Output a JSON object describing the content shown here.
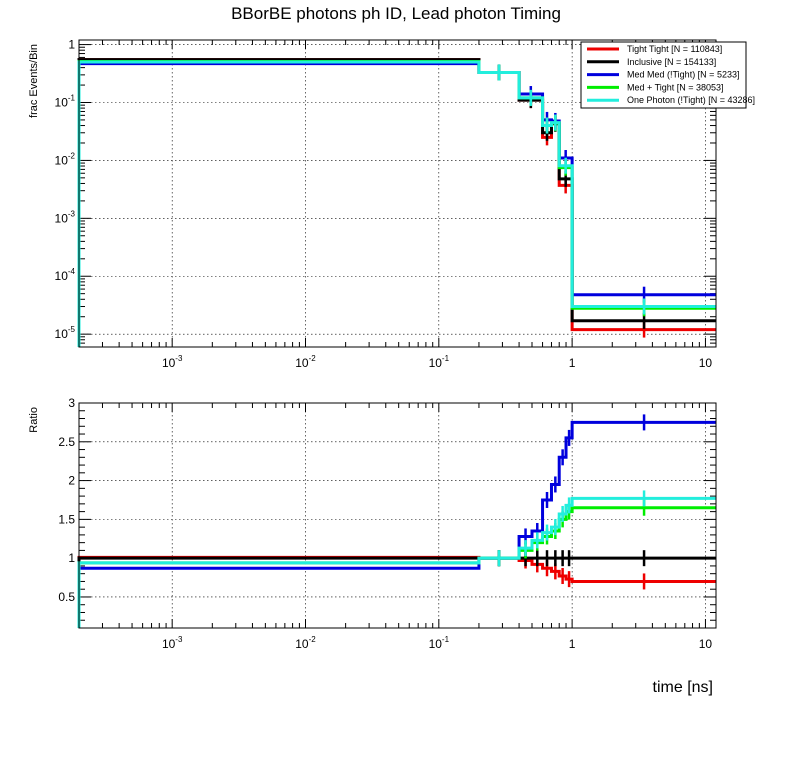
{
  "title": "BBorBE photons ph ID, Lead photon Timing",
  "xlabel": "time [ns]",
  "colors": {
    "Tight Tight": "#ee0000",
    "Inclusive": "#000000",
    "Med Med (!Tight)": "#0000dd",
    "Med + Tight": "#00ee00",
    "One Photon (!Tight)": "#22eedd"
  },
  "chart_data": [
    {
      "type": "line",
      "step": true,
      "ylabel": "frac Events/Bin",
      "xscale": "log",
      "yscale": "log",
      "xlim": [
        0.0002,
        12
      ],
      "ylim": [
        6e-06,
        1.2
      ],
      "grid": true,
      "legend_position": "top-right",
      "xticks": [
        {
          "value": 0.001,
          "base": "10",
          "exp": "-3"
        },
        {
          "value": 0.01,
          "base": "10",
          "exp": "-2"
        },
        {
          "value": 0.1,
          "base": "10",
          "exp": "-1"
        },
        {
          "value": 1,
          "base": "1",
          "exp": ""
        },
        {
          "value": 10,
          "base": "10",
          "exp": ""
        }
      ],
      "yticks": [
        {
          "value": 1,
          "base": "1",
          "exp": ""
        },
        {
          "value": 0.1,
          "base": "10",
          "exp": "-1"
        },
        {
          "value": 0.01,
          "base": "10",
          "exp": "-2"
        },
        {
          "value": 0.001,
          "base": "10",
          "exp": "-3"
        },
        {
          "value": 0.0001,
          "base": "10",
          "exp": "-4"
        },
        {
          "value": 1e-05,
          "base": "10",
          "exp": "-5"
        }
      ],
      "edges": [
        0.0002,
        0.2,
        0.4,
        0.6,
        0.7,
        0.8,
        1.0,
        12
      ],
      "series": [
        {
          "name": "Tight Tight [N = 110843]",
          "key": "Tight Tight",
          "values": [
            0.55,
            0.33,
            0.11,
            0.025,
            0.045,
            0.0037,
            1.2e-05
          ]
        },
        {
          "name": "Inclusive [N = 154133]",
          "key": "Inclusive",
          "values": [
            0.55,
            0.33,
            0.11,
            0.03,
            0.043,
            0.0048,
            1.7e-05
          ]
        },
        {
          "name": "Med Med (!Tight) [N = 5233]",
          "key": "Med Med (!Tight)",
          "values": [
            0.47,
            0.33,
            0.14,
            0.05,
            0.048,
            0.011,
            4.8e-05
          ]
        },
        {
          "name": "Med + Tight [N = 38053]",
          "key": "Med + Tight",
          "values": [
            0.51,
            0.33,
            0.12,
            0.04,
            0.044,
            0.0075,
            2.8e-05
          ]
        },
        {
          "name": "One Photon (!Tight) [N = 43286]",
          "key": "One Photon (!Tight)",
          "values": [
            0.5,
            0.33,
            0.12,
            0.04,
            0.045,
            0.0081,
            3e-05
          ]
        }
      ]
    },
    {
      "type": "line",
      "step": true,
      "ylabel": "Ratio",
      "xscale": "log",
      "yscale": "linear",
      "xlim": [
        0.0002,
        12
      ],
      "ylim": [
        0.1,
        3
      ],
      "grid": true,
      "xticks": [
        {
          "value": 0.001,
          "base": "10",
          "exp": "-3"
        },
        {
          "value": 0.01,
          "base": "10",
          "exp": "-2"
        },
        {
          "value": 0.1,
          "base": "10",
          "exp": "-1"
        },
        {
          "value": 1,
          "base": "1",
          "exp": ""
        },
        {
          "value": 10,
          "base": "10",
          "exp": ""
        }
      ],
      "yticks": [
        {
          "value": 0.5,
          "label": "0.5"
        },
        {
          "value": 1,
          "label": "1"
        },
        {
          "value": 1.5,
          "label": "1.5"
        },
        {
          "value": 2,
          "label": "2"
        },
        {
          "value": 2.5,
          "label": "2.5"
        },
        {
          "value": 3,
          "label": "3"
        }
      ],
      "edges": [
        0.0002,
        0.2,
        0.4,
        0.5,
        0.6,
        0.7,
        0.8,
        0.9,
        1.0,
        12
      ],
      "series": [
        {
          "key": "Tight Tight",
          "values": [
            1.01,
            1.0,
            0.97,
            0.92,
            0.87,
            0.83,
            0.77,
            0.73,
            0.7
          ]
        },
        {
          "key": "Inclusive",
          "values": [
            1.0,
            1.0,
            1.0,
            1.0,
            1.0,
            1.0,
            1.0,
            1.0,
            1.0
          ]
        },
        {
          "key": "Med Med (!Tight)",
          "values": [
            0.87,
            1.0,
            1.28,
            1.35,
            1.75,
            1.95,
            2.3,
            2.55,
            2.75
          ]
        },
        {
          "key": "Med + Tight",
          "values": [
            0.94,
            1.0,
            1.1,
            1.2,
            1.28,
            1.35,
            1.5,
            1.6,
            1.65
          ]
        },
        {
          "key": "One Photon (!Tight)",
          "values": [
            0.94,
            1.0,
            1.13,
            1.23,
            1.33,
            1.4,
            1.57,
            1.68,
            1.77
          ]
        }
      ]
    }
  ]
}
